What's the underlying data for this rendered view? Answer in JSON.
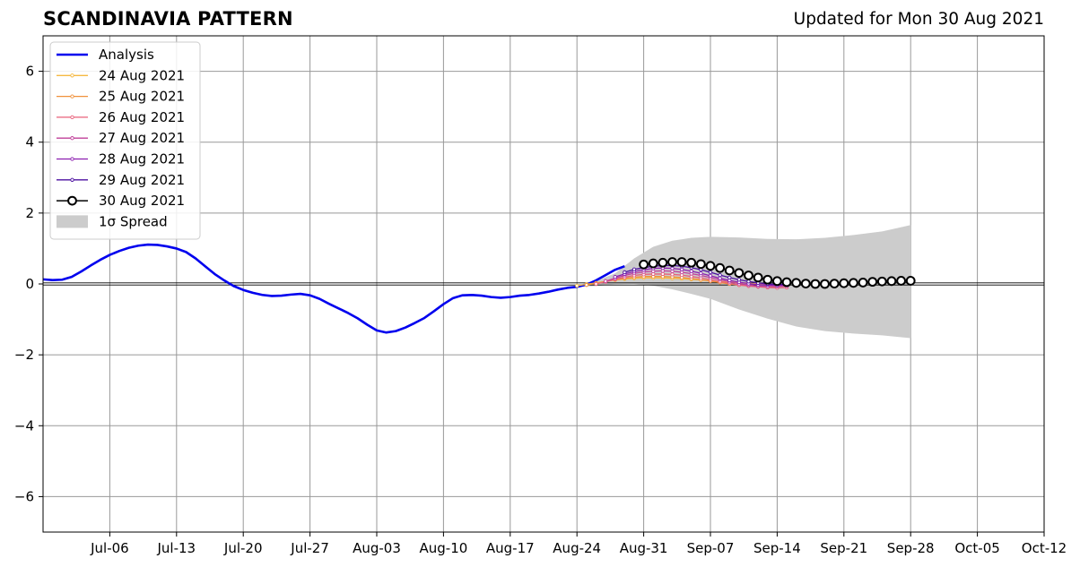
{
  "header": {
    "title": "SCANDINAVIA PATTERN",
    "subtitle": "Updated for Mon 30 Aug 2021"
  },
  "chart_data": {
    "type": "line",
    "title": "SCANDINAVIA PATTERN",
    "subtitle": "Updated for Mon 30 Aug 2021",
    "xlabel": "",
    "ylabel": "",
    "xlim": [
      "2021-06-29",
      "2021-10-12"
    ],
    "ylim": [
      -7,
      7
    ],
    "x_ticks": [
      "Jul-06",
      "Jul-13",
      "Jul-20",
      "Jul-27",
      "Aug-03",
      "Aug-10",
      "Aug-17",
      "Aug-24",
      "Aug-31",
      "Sep-07",
      "Sep-14",
      "Sep-21",
      "Sep-28",
      "Oct-05",
      "Oct-12"
    ],
    "x_tick_dates": [
      "2021-07-06",
      "2021-07-13",
      "2021-07-20",
      "2021-07-27",
      "2021-08-03",
      "2021-08-10",
      "2021-08-17",
      "2021-08-24",
      "2021-08-31",
      "2021-09-07",
      "2021-09-14",
      "2021-09-21",
      "2021-09-28",
      "2021-10-05",
      "2021-10-12"
    ],
    "y_ticks": [
      "6",
      "4",
      "2",
      "0",
      "−2",
      "−4",
      "−6"
    ],
    "y_tick_values": [
      6,
      4,
      2,
      0,
      -2,
      -4,
      -6
    ],
    "grid": true,
    "legend_position": "top-left",
    "colors": {
      "analysis": "#0000ee",
      "spread": "#cccccc",
      "zero_line": "#000000",
      "grid": "#999999"
    },
    "analysis": {
      "name": "Analysis",
      "start": "2021-06-29",
      "values": [
        0.13,
        0.11,
        0.12,
        0.2,
        0.35,
        0.52,
        0.68,
        0.82,
        0.93,
        1.02,
        1.08,
        1.11,
        1.1,
        1.06,
        1.0,
        0.9,
        0.72,
        0.5,
        0.28,
        0.1,
        -0.06,
        -0.17,
        -0.25,
        -0.31,
        -0.34,
        -0.33,
        -0.3,
        -0.28,
        -0.32,
        -0.42,
        -0.56,
        -0.69,
        -0.82,
        -0.97,
        -1.15,
        -1.31,
        -1.37,
        -1.33,
        -1.23,
        -1.1,
        -0.96,
        -0.77,
        -0.57,
        -0.4,
        -0.32,
        -0.31,
        -0.33,
        -0.37,
        -0.39,
        -0.37,
        -0.33,
        -0.31,
        -0.27,
        -0.22,
        -0.16,
        -0.11,
        -0.08,
        -0.02,
        0.1,
        0.25,
        0.4,
        0.5
      ]
    },
    "forecasts": [
      {
        "name": "24 Aug 2021",
        "color": "#f5b942",
        "start": "2021-08-24",
        "values": [
          -0.05,
          -0.01,
          0.03,
          0.07,
          0.11,
          0.14,
          0.16,
          0.17,
          0.17,
          0.17,
          0.16,
          0.15,
          0.13,
          0.11,
          0.09,
          0.07,
          0.05,
          0.04,
          0.02,
          0.0,
          -0.01
        ]
      },
      {
        "name": "25 Aug 2021",
        "color": "#f0913c",
        "start": "2021-08-25",
        "values": [
          -0.03,
          0.02,
          0.07,
          0.12,
          0.16,
          0.19,
          0.21,
          0.21,
          0.21,
          0.2,
          0.18,
          0.15,
          0.12,
          0.08,
          0.04,
          0.0,
          -0.03,
          -0.05,
          -0.07,
          -0.08,
          -0.08
        ]
      },
      {
        "name": "26 Aug 2021",
        "color": "#e8607a",
        "start": "2021-08-26",
        "values": [
          0.0,
          0.06,
          0.13,
          0.19,
          0.24,
          0.27,
          0.28,
          0.28,
          0.27,
          0.25,
          0.21,
          0.17,
          0.12,
          0.07,
          0.02,
          -0.03,
          -0.06,
          -0.08,
          -0.1,
          -0.11,
          -0.1
        ]
      },
      {
        "name": "27 Aug 2021",
        "color": "#c0409a",
        "start": "2021-08-27",
        "values": [
          0.08,
          0.16,
          0.24,
          0.3,
          0.34,
          0.36,
          0.37,
          0.36,
          0.33,
          0.29,
          0.24,
          0.18,
          0.12,
          0.06,
          0.01,
          -0.03,
          -0.06,
          -0.07,
          -0.07,
          -0.06
        ]
      },
      {
        "name": "28 Aug 2021",
        "color": "#8c1fb0",
        "start": "2021-08-28",
        "values": [
          0.2,
          0.28,
          0.35,
          0.4,
          0.44,
          0.45,
          0.44,
          0.41,
          0.36,
          0.3,
          0.23,
          0.16,
          0.1,
          0.05,
          0.01,
          -0.02,
          -0.03,
          -0.04,
          -0.03
        ]
      },
      {
        "name": "29 Aug 2021",
        "color": "#4b0fa0",
        "start": "2021-08-29",
        "values": [
          0.33,
          0.41,
          0.46,
          0.5,
          0.52,
          0.52,
          0.5,
          0.46,
          0.4,
          0.33,
          0.25,
          0.18,
          0.12,
          0.07,
          0.03,
          0.0,
          -0.01,
          -0.01
        ]
      },
      {
        "name": "30 Aug 2021",
        "color": "#000000",
        "marker": "open-circle",
        "start": "2021-08-31",
        "values": [
          0.55,
          0.58,
          0.6,
          0.62,
          0.62,
          0.6,
          0.56,
          0.51,
          0.45,
          0.38,
          0.31,
          0.24,
          0.18,
          0.12,
          0.08,
          0.05,
          0.03,
          0.01,
          0.0,
          0.0,
          0.01,
          0.02,
          0.03,
          0.04,
          0.06,
          0.07,
          0.08,
          0.09,
          0.09
        ]
      }
    ],
    "spread": {
      "name": "1σ Spread",
      "dates": [
        "2021-08-24",
        "2021-08-26",
        "2021-08-28",
        "2021-08-30",
        "2021-09-01",
        "2021-09-03",
        "2021-09-05",
        "2021-09-07",
        "2021-09-10",
        "2021-09-13",
        "2021-09-16",
        "2021-09-19",
        "2021-09-22",
        "2021-09-25",
        "2021-09-28"
      ],
      "upper": [
        -0.03,
        0.08,
        0.3,
        0.72,
        1.05,
        1.22,
        1.3,
        1.33,
        1.31,
        1.27,
        1.26,
        1.3,
        1.38,
        1.48,
        1.66
      ],
      "lower": [
        -0.08,
        -0.06,
        -0.01,
        0.0,
        -0.05,
        -0.15,
        -0.28,
        -0.42,
        -0.72,
        -0.98,
        -1.2,
        -1.33,
        -1.4,
        -1.45,
        -1.53
      ]
    },
    "legend": [
      "Analysis",
      "24 Aug 2021",
      "25 Aug 2021",
      "26 Aug 2021",
      "27 Aug 2021",
      "28 Aug 2021",
      "29 Aug 2021",
      "30 Aug 2021",
      "1σ Spread"
    ]
  }
}
